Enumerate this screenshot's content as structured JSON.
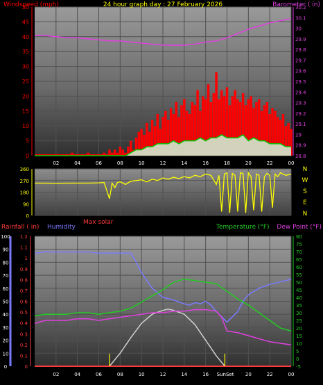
{
  "colors": {
    "windspeed": "#ff3030",
    "gust": "#ff0000",
    "wind_avg": "#00cc00",
    "wind_fill": "#cfe9cf",
    "barometer": "#e040e0",
    "direction": "#ffff00",
    "rainfall": "#ff3a3a",
    "humidity": "#7a7aff",
    "temperature": "#22cc22",
    "dewpoint": "#e040e0",
    "solar": "#d0d0d0",
    "sun_marker": "#ffff00",
    "axis_text": "#ffffff"
  },
  "chart_data": [
    {
      "type": "bar",
      "title": "24 hour graph day : 27 February 2026",
      "left_label": "Windspeed (mph)",
      "right_label": "Barometer ( in)",
      "x_ticks": [
        "02",
        "04",
        "06",
        "08",
        "10",
        "12",
        "14",
        "16",
        "18",
        "20",
        "22",
        "00"
      ],
      "y_left_ticks": [
        0,
        5,
        10,
        15,
        20,
        25,
        30,
        35,
        40,
        45,
        50
      ],
      "y_right_ticks": [
        "28.8",
        "28.9",
        "29",
        "29.1",
        "29.2",
        "29.3",
        "29.4",
        "29.5",
        "29.6",
        "29.7",
        "29.8",
        "29.9",
        "30",
        "30.1",
        "30.2"
      ],
      "ylim_left": [
        0,
        50
      ],
      "ylim_right": [
        28.8,
        30.2
      ],
      "grid": true,
      "series": [
        {
          "name": "Windspeed (mph)",
          "kind": "gust",
          "x": [
            0,
            0.5,
            1,
            1.5,
            2,
            2.5,
            3,
            3.5,
            4,
            4.5,
            5,
            5.5,
            6,
            6.5,
            7,
            7.25,
            7.5,
            7.75,
            8,
            8.25,
            8.5,
            8.75,
            9,
            9.25,
            9.5,
            9.75,
            10,
            10.25,
            10.5,
            10.75,
            11,
            11.25,
            11.5,
            11.75,
            12,
            12.25,
            12.5,
            12.75,
            13,
            13.25,
            13.5,
            13.75,
            14,
            14.25,
            14.5,
            14.75,
            15,
            15.25,
            15.5,
            15.75,
            16,
            16.25,
            16.5,
            16.75,
            17,
            17.25,
            17.5,
            17.75,
            18,
            18.25,
            18.5,
            18.75,
            19,
            19.25,
            19.5,
            19.75,
            20,
            20.25,
            20.5,
            20.75,
            21,
            21.25,
            21.5,
            21.75,
            22,
            22.25,
            22.5,
            22.75,
            23,
            23.25,
            23.5,
            23.75,
            24
          ],
          "values": [
            0,
            0,
            0,
            0,
            0,
            0,
            0,
            1,
            0,
            0,
            1,
            0,
            0,
            1,
            2,
            1,
            2,
            1,
            3,
            2,
            1,
            3,
            5,
            2,
            6,
            8,
            9,
            7,
            11,
            8,
            12,
            10,
            14,
            9,
            13,
            15,
            12,
            16,
            14,
            18,
            13,
            17,
            19,
            15,
            14,
            18,
            17,
            22,
            15,
            20,
            19,
            24,
            18,
            21,
            28,
            19,
            22,
            20,
            23,
            17,
            20,
            22,
            19,
            18,
            21,
            17,
            19,
            20,
            16,
            18,
            19,
            15,
            17,
            18,
            14,
            16,
            15,
            13,
            12,
            14,
            10,
            11,
            9
          ]
        },
        {
          "name": "Average windspeed",
          "kind": "average",
          "x": [
            0,
            1,
            2,
            3,
            4,
            5,
            6,
            7,
            8,
            8.5,
            9,
            9.5,
            10,
            10.5,
            11,
            11.5,
            12,
            12.5,
            13,
            13.5,
            14,
            14.5,
            15,
            15.5,
            16,
            16.5,
            17,
            17.5,
            18,
            18.5,
            19,
            19.5,
            20,
            20.5,
            21,
            21.5,
            22,
            22.5,
            23,
            23.5,
            24
          ],
          "values": [
            0,
            0,
            0,
            0,
            0,
            0,
            0,
            0,
            0,
            0,
            1,
            2,
            2,
            3,
            3,
            4,
            4,
            4,
            5,
            4,
            5,
            5,
            5,
            6,
            5,
            6,
            6,
            7,
            6,
            6,
            6,
            7,
            5,
            6,
            5,
            5,
            4,
            4,
            4,
            3,
            3
          ]
        },
        {
          "name": "Barometer ( in)",
          "axis": "right",
          "x": [
            0,
            1,
            2,
            3,
            4,
            5,
            6,
            7,
            8,
            9,
            10,
            11,
            12,
            13,
            14,
            15,
            16,
            17,
            18,
            19,
            20,
            21,
            22,
            23,
            24
          ],
          "values": [
            29.93,
            29.93,
            29.92,
            29.91,
            29.91,
            29.9,
            29.89,
            29.88,
            29.88,
            29.87,
            29.86,
            29.85,
            29.84,
            29.84,
            29.84,
            29.85,
            29.87,
            29.88,
            29.91,
            29.95,
            29.99,
            30.02,
            30.05,
            30.07,
            30.09
          ]
        }
      ]
    },
    {
      "type": "scatter",
      "title": "",
      "right_label_letters": [
        "N",
        "W",
        "S",
        "E",
        "N"
      ],
      "y_ticks": [
        0,
        90,
        180,
        270,
        360
      ],
      "ylim": [
        0,
        360
      ],
      "x_ticks": [],
      "series": [
        {
          "name": "Wind direction",
          "x": [
            0,
            1,
            2,
            3,
            4,
            5,
            6,
            6.5,
            7,
            7.25,
            7.5,
            7.75,
            8,
            8.5,
            9,
            9.5,
            10,
            10.5,
            11,
            11.5,
            12,
            12.5,
            13,
            13.5,
            14,
            14.5,
            15,
            15.5,
            16,
            16.5,
            17,
            17.25,
            17.5,
            17.75,
            18,
            18.25,
            18.5,
            18.75,
            19,
            19.25,
            19.5,
            19.75,
            20,
            20.25,
            20.5,
            20.75,
            21,
            21.25,
            21.5,
            21.75,
            22,
            22.25,
            22.5,
            22.75,
            23,
            23.5,
            24
          ],
          "values": [
            250,
            250,
            248,
            250,
            250,
            250,
            252,
            255,
            130,
            250,
            215,
            255,
            260,
            240,
            265,
            270,
            275,
            260,
            280,
            270,
            290,
            280,
            295,
            285,
            300,
            290,
            310,
            300,
            320,
            310,
            240,
            310,
            30,
            320,
            330,
            20,
            325,
            310,
            30,
            330,
            325,
            20,
            330,
            300,
            40,
            320,
            310,
            30,
            300,
            325,
            310,
            60,
            320,
            300,
            330,
            310,
            320
          ]
        }
      ]
    },
    {
      "type": "line",
      "title": "",
      "left_label_rain": "Rainfall ( in)",
      "left_label_humidity": "Humidity",
      "solar_label": "Max solar",
      "right_label_temp": "Temperature (°F)",
      "right_label_dew": "Dew Point (°F)",
      "x_ticks": [
        "02",
        "04",
        "06",
        "08",
        "10",
        "12",
        "14",
        "16",
        "20",
        "22",
        "00"
      ],
      "sun_labels": [
        "Sun",
        "Set"
      ],
      "y_humidity_ticks": [
        0,
        10,
        20,
        30,
        40,
        50,
        60,
        70,
        80,
        90,
        100
      ],
      "y_rain_ticks": [
        "0",
        "0.1",
        "0.2",
        "0.3",
        "0.4",
        "0.5",
        "0.6",
        "0.7",
        "0.8",
        "0.9",
        "1",
        "1.1",
        "1.2"
      ],
      "y_temp_ticks": [
        -5,
        0,
        5,
        10,
        15,
        20,
        25,
        30,
        35,
        40,
        45,
        50,
        55,
        60,
        65,
        70,
        75,
        80
      ],
      "ylim_humidity": [
        0,
        100
      ],
      "ylim_rain": [
        0,
        1.2
      ],
      "ylim_temp": [
        -5,
        80
      ],
      "grid": true,
      "series": [
        {
          "name": "Humidity",
          "axis": "humidity",
          "x": [
            0,
            1,
            2,
            3,
            4,
            5,
            6,
            7,
            8,
            9,
            9.5,
            10,
            11,
            12,
            13,
            14,
            14.5,
            15,
            15.5,
            16,
            16.5,
            17,
            17.5,
            18,
            18.5,
            19,
            19.5,
            20,
            21,
            22,
            23,
            24
          ],
          "values": [
            87,
            88,
            88,
            88,
            88,
            88,
            87,
            87,
            87,
            87,
            80,
            72,
            60,
            53,
            51,
            48,
            47,
            49,
            48,
            50,
            47,
            42,
            38,
            34,
            38,
            42,
            50,
            55,
            60,
            63,
            65,
            67
          ]
        },
        {
          "name": "Temperature (°F)",
          "axis": "temp",
          "x": [
            0,
            1,
            2,
            3,
            4,
            5,
            6,
            7,
            8,
            9,
            10,
            11,
            12,
            13,
            14,
            15,
            16,
            17,
            18,
            19,
            20,
            21,
            22,
            23,
            24
          ],
          "values": [
            28,
            29,
            29,
            29,
            30,
            30,
            29,
            30,
            31,
            33,
            37,
            41,
            45,
            50,
            52,
            51,
            50,
            49,
            44,
            39,
            35,
            30,
            25,
            20,
            18
          ]
        },
        {
          "name": "Dew Point (°F)",
          "axis": "temp",
          "x": [
            0,
            1,
            2,
            3,
            4,
            5,
            6,
            7,
            8,
            9,
            10,
            11,
            12,
            13,
            14,
            15,
            16,
            17,
            17.5,
            18,
            19,
            20,
            21,
            22,
            23,
            24
          ],
          "values": [
            23,
            25,
            25,
            25,
            26,
            26,
            25,
            26,
            27,
            28,
            29,
            30,
            30,
            31,
            31,
            32,
            32,
            31,
            27,
            18,
            17,
            15,
            13,
            11,
            10,
            9
          ]
        },
        {
          "name": "Max solar",
          "axis": "humidity",
          "x": [
            7,
            8,
            9,
            10,
            11,
            12,
            12.5,
            13,
            14,
            15,
            16,
            17,
            17.8
          ],
          "values": [
            0,
            10,
            22,
            33,
            40,
            43,
            44,
            43,
            40,
            32,
            20,
            8,
            0
          ]
        },
        {
          "name": "Rainfall ( in)",
          "axis": "rain",
          "x": [
            0,
            24
          ],
          "values": [
            0,
            0
          ]
        }
      ]
    }
  ]
}
